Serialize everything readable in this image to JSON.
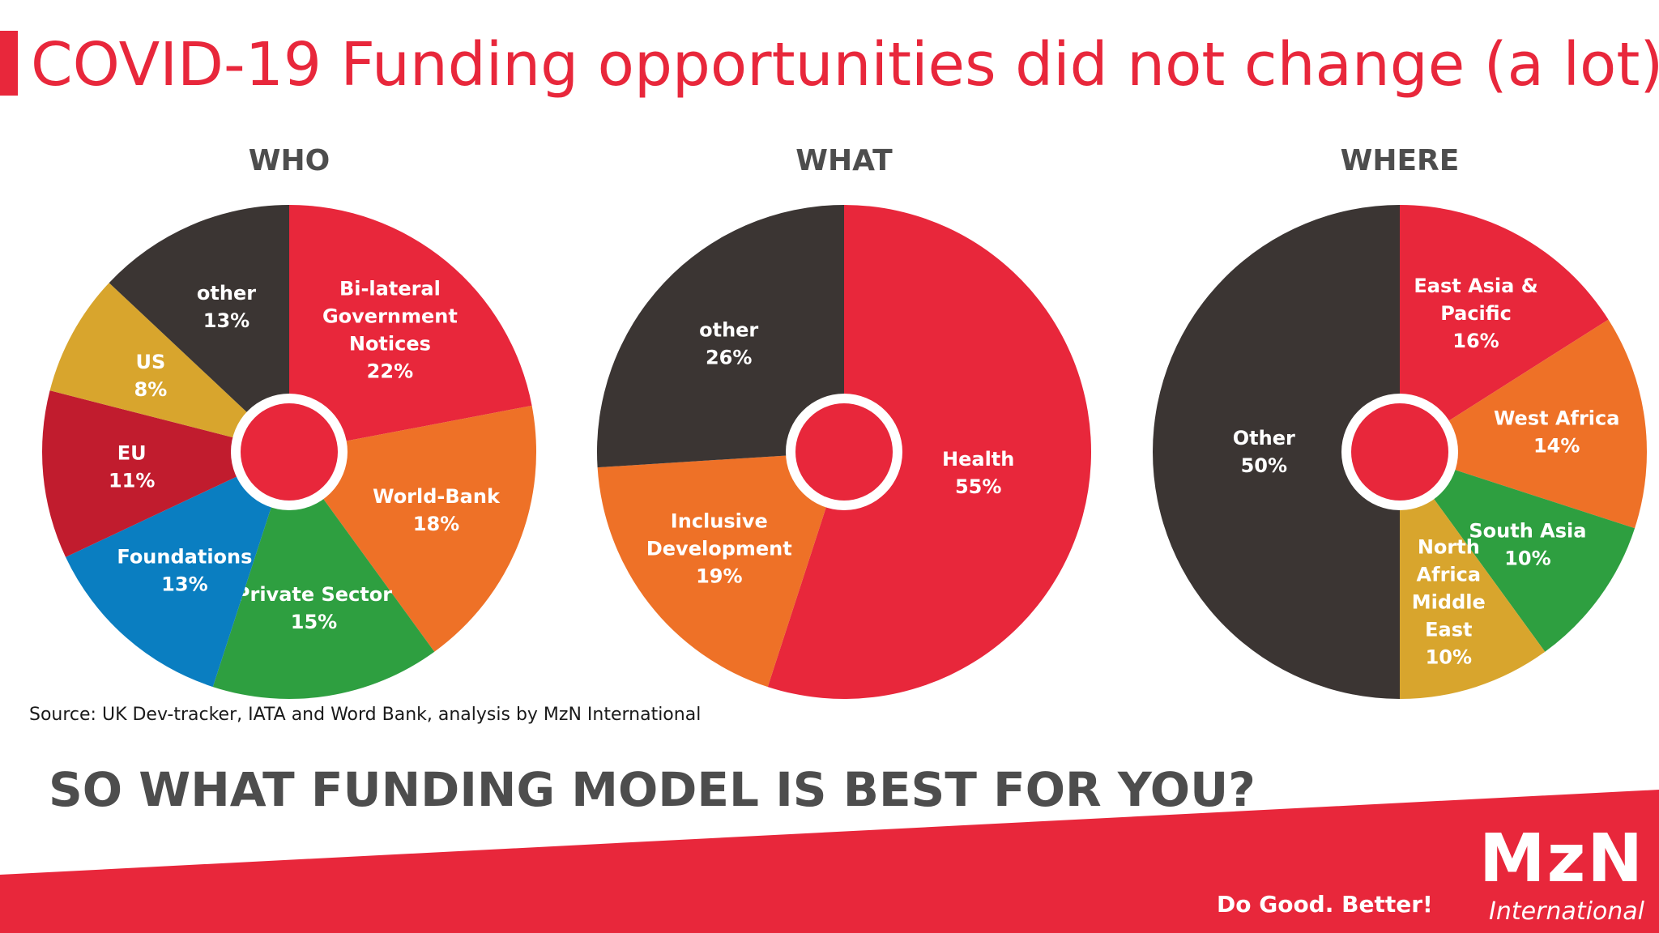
{
  "title": "COVID-19 Funding opportunities did not change (a lot)",
  "colors": {
    "accent": "#e8273b",
    "dark": "#3b3533",
    "orange": "#ee7127",
    "green": "#2e9f40",
    "blue": "#0a7ec1",
    "maroon": "#c11c2e",
    "gold": "#d8a52d"
  },
  "chart_data": [
    {
      "type": "pie",
      "title": "WHO",
      "slices": [
        {
          "label": [
            "Bi-lateral",
            "Government",
            "Notices",
            "22%"
          ],
          "value": 22,
          "color": "#e8273b"
        },
        {
          "label": [
            "World-Bank",
            "18%"
          ],
          "value": 18,
          "color": "#ee7127"
        },
        {
          "label": [
            "Private Sector",
            "15%"
          ],
          "value": 15,
          "color": "#2e9f40"
        },
        {
          "label": [
            "Foundations",
            "13%"
          ],
          "value": 13,
          "color": "#0a7ec1"
        },
        {
          "label": [
            "EU",
            "11%"
          ],
          "value": 11,
          "color": "#c11c2e"
        },
        {
          "label": [
            "US",
            "8%"
          ],
          "value": 8,
          "color": "#d8a52d"
        },
        {
          "label": [
            "other",
            "13%"
          ],
          "value": 13,
          "color": "#3b3533"
        }
      ]
    },
    {
      "type": "pie",
      "title": "WHAT",
      "slices": [
        {
          "label": [
            "Health",
            "55%"
          ],
          "value": 55,
          "color": "#e8273b"
        },
        {
          "label": [
            "Inclusive",
            "Development",
            "19%"
          ],
          "value": 19,
          "color": "#ee7127"
        },
        {
          "label": [
            "other",
            "26%"
          ],
          "value": 26,
          "color": "#3b3533"
        }
      ]
    },
    {
      "type": "pie",
      "title": "WHERE",
      "slices": [
        {
          "label": [
            "East Asia &",
            "Pacific",
            "16%"
          ],
          "value": 16,
          "color": "#e8273b"
        },
        {
          "label": [
            "West Africa",
            "14%"
          ],
          "value": 14,
          "color": "#ee7127"
        },
        {
          "label": [
            "South Asia",
            "10%"
          ],
          "value": 10,
          "color": "#2e9f40"
        },
        {
          "label": [
            "North",
            "Africa",
            "Middle",
            "East",
            "10%"
          ],
          "value": 10,
          "color": "#d8a52d"
        },
        {
          "label": [
            "Other",
            "50%"
          ],
          "value": 50,
          "color": "#3b3533"
        }
      ]
    }
  ],
  "source": "Source: UK Dev-tracker, IATA and Word Bank, analysis by MzN International",
  "question": "SO WHAT FUNDING MODEL IS BEST FOR YOU?",
  "slogan": "Do Good. Better!",
  "logo": {
    "mark": "MzN",
    "sub": "International"
  }
}
